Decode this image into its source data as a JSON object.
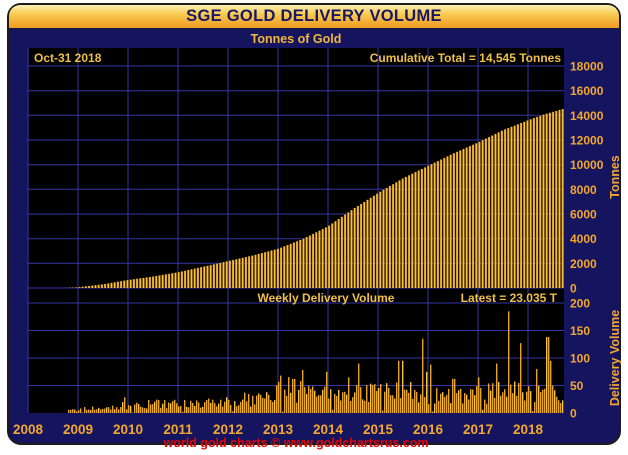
{
  "header": {
    "title": "SGE GOLD DELIVERY VOLUME",
    "subtitle": "Tonnes of Gold"
  },
  "footer": {
    "credit": "world gold charts © www.goldchartsrus.com"
  },
  "colors": {
    "card_bg": "#15155f",
    "plot_bg": "#000000",
    "grid": "#3636a6",
    "gold_label": "#f3a72f",
    "annotation_gold": "#eec04a",
    "title_text": "#181864",
    "footer_red": "#e00505",
    "bar_dark": "#9a5a00",
    "bar_bright": "#ffd84e",
    "bar_mid": "#f0a620",
    "weekly_bar": "#e8a51c",
    "weekly_bar_bright": "#f6c33a"
  },
  "chart_data": [
    {
      "type": "area",
      "name": "Cumulative SGE gold delivery volume (dense weekly bars)",
      "date_annotation": "Oct-31  2018",
      "total_annotation": "Cumulative Total = 14,545 Tonnes",
      "cumulative_total_tonnes": 14545,
      "as_of_date": "Oct-31 2018",
      "ylabel": "Tonnes",
      "ylim": [
        0,
        18000
      ],
      "y_ticks": [
        0,
        2000,
        4000,
        6000,
        8000,
        10000,
        12000,
        14000,
        16000,
        18000
      ],
      "x_ticks": [
        2008,
        2009,
        2010,
        2011,
        2012,
        2013,
        2014,
        2015,
        2016,
        2017,
        2018
      ],
      "xlim": [
        2008,
        2018.72
      ],
      "grid": "on",
      "cumulative_anchors": [
        [
          2008.75,
          0
        ],
        [
          2009.0,
          60
        ],
        [
          2009.5,
          300
        ],
        [
          2010.0,
          650
        ],
        [
          2010.5,
          930
        ],
        [
          2011.0,
          1280
        ],
        [
          2011.5,
          1720
        ],
        [
          2012.0,
          2180
        ],
        [
          2012.5,
          2640
        ],
        [
          2013.0,
          3180
        ],
        [
          2013.5,
          3980
        ],
        [
          2014.0,
          5000
        ],
        [
          2014.5,
          6400
        ],
        [
          2015.0,
          7700
        ],
        [
          2015.5,
          8900
        ],
        [
          2016.0,
          9900
        ],
        [
          2016.5,
          10900
        ],
        [
          2017.0,
          11800
        ],
        [
          2017.5,
          12800
        ],
        [
          2018.0,
          13600
        ],
        [
          2018.3,
          14050
        ],
        [
          2018.72,
          14545
        ]
      ]
    },
    {
      "type": "bar",
      "name": "Weekly SGE gold delivery volume",
      "label_annotation": "Weekly Delivery Volume",
      "latest_annotation": "Latest = 23.035 T",
      "latest_value_tonnes": 23.035,
      "ylabel": "Delivery Volume",
      "ylim": [
        0,
        225
      ],
      "y_ticks": [
        0,
        50,
        100,
        150,
        200
      ],
      "grid": "on",
      "base_week_anchors": [
        [
          2008.75,
          5
        ],
        [
          2009.5,
          9
        ],
        [
          2010.0,
          14
        ],
        [
          2011.0,
          18
        ],
        [
          2012.0,
          22
        ],
        [
          2012.9,
          30
        ],
        [
          2013.1,
          45
        ],
        [
          2013.6,
          38
        ],
        [
          2014.0,
          32
        ],
        [
          2015.0,
          38
        ],
        [
          2016.0,
          36
        ],
        [
          2017.0,
          36
        ],
        [
          2018.0,
          40
        ],
        [
          2018.7,
          38
        ]
      ],
      "spikes": [
        [
          2013.05,
          68
        ],
        [
          2013.3,
          62
        ],
        [
          2013.45,
          58
        ],
        [
          2013.95,
          75
        ],
        [
          2014.4,
          65
        ],
        [
          2015.4,
          95
        ],
        [
          2015.88,
          135
        ],
        [
          2015.96,
          75
        ],
        [
          2016.05,
          88
        ],
        [
          2016.5,
          62
        ],
        [
          2017.0,
          65
        ],
        [
          2017.35,
          90
        ],
        [
          2017.6,
          185
        ],
        [
          2017.85,
          127
        ],
        [
          2018.15,
          80
        ],
        [
          2018.38,
          138
        ],
        [
          2018.45,
          95
        ]
      ],
      "noise_seed": 12
    }
  ]
}
